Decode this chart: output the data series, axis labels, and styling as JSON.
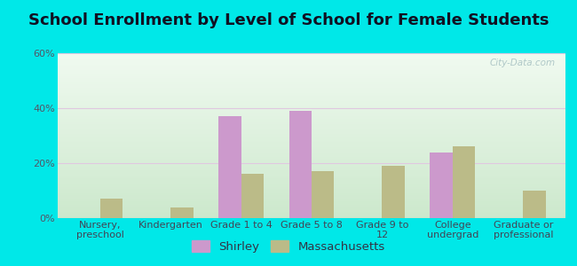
{
  "title": "School Enrollment by Level of School for Female Students",
  "categories": [
    "Nursery,\npreschool",
    "Kindergarten",
    "Grade 1 to 4",
    "Grade 5 to 8",
    "Grade 9 to\n12",
    "College\nundergrad",
    "Graduate or\nprofessional"
  ],
  "shirley": [
    0,
    0,
    37,
    39,
    0,
    24,
    0
  ],
  "massachusetts": [
    7,
    4,
    16,
    17,
    19,
    26,
    10
  ],
  "shirley_color": "#cc99cc",
  "massachusetts_color": "#bbbb88",
  "background_color": "#00e8e8",
  "ylim": [
    0,
    60
  ],
  "yticks": [
    0,
    20,
    40,
    60
  ],
  "ytick_labels": [
    "0%",
    "20%",
    "40%",
    "60%"
  ],
  "legend_labels": [
    "Shirley",
    "Massachusetts"
  ],
  "bar_width": 0.32,
  "title_fontsize": 13,
  "tick_fontsize": 8,
  "legend_fontsize": 9.5,
  "plot_bg_top_color": "#f0faf0",
  "plot_bg_bottom_color": "#cce8cc",
  "grid_color": "#e0c8e0",
  "watermark_color": "#b0c8c8"
}
